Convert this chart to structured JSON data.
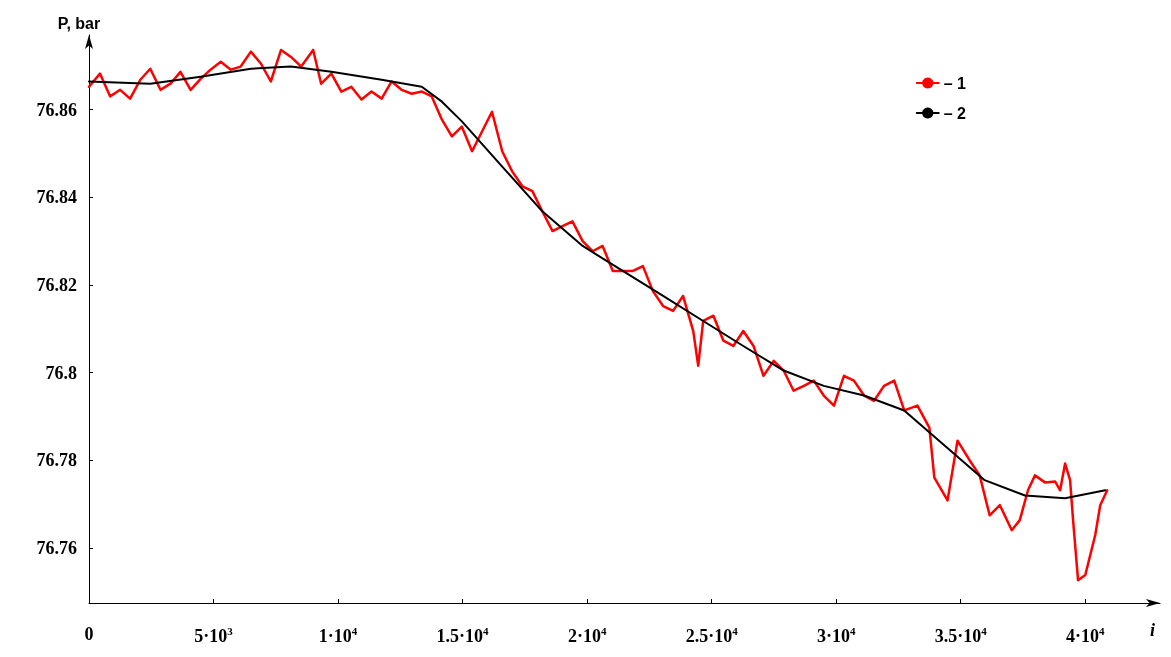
{
  "chart_data": {
    "type": "line",
    "ylabel": "P, bar",
    "xlabel": "i",
    "xlim": [
      0,
      43000
    ],
    "ylim": [
      76.7475,
      76.877
    ],
    "xticks": [
      0,
      {
        "value": 5000,
        "label": "5·10$^{3}$"
      },
      {
        "value": 10000,
        "label": "1·10$^{4}$"
      },
      {
        "value": 15000,
        "label": "1.5·10$^{4}$"
      },
      {
        "value": 20000,
        "label": "2·10$^{4}$"
      },
      {
        "value": 25000,
        "label": "2.5·10$^{4}$"
      },
      {
        "value": 30000,
        "label": "3·10$^{4}$"
      },
      {
        "value": 35000,
        "label": "3.5·10$^{4}$"
      },
      {
        "value": 40000,
        "label": "4·10$^{4}$"
      }
    ],
    "yticks": [
      76.76,
      76.78,
      76.8,
      76.82,
      76.84,
      76.86
    ],
    "grid": false,
    "legend": "top right",
    "marker": "none",
    "line_style": "solid",
    "series": [
      {
        "name": "– 1",
        "color": "#ff0000",
        "x": [
          0,
          440,
          850,
          1250,
          1650,
          2060,
          2460,
          2870,
          3270,
          3670,
          4080,
          4480,
          4880,
          5290,
          5690,
          6090,
          6500,
          6900,
          7300,
          7710,
          8110,
          8520,
          9000,
          9320,
          9730,
          10130,
          10530,
          10940,
          11340,
          11750,
          12150,
          12550,
          12960,
          13360,
          13760,
          14170,
          14570,
          14970,
          15380,
          15780,
          16180,
          16590,
          16990,
          17400,
          17800,
          18200,
          18610,
          19010,
          19410,
          19820,
          20220,
          20620,
          21030,
          21430,
          21840,
          22240,
          22640,
          23050,
          23450,
          23850,
          24260,
          24460,
          24660,
          25070,
          25470,
          25870,
          26270,
          26680,
          27080,
          27490,
          27890,
          28290,
          28700,
          29100,
          29500,
          29910,
          30310,
          30710,
          31120,
          31520,
          31920,
          32330,
          32730,
          33260,
          33740,
          33940,
          34470,
          34870,
          35360,
          35760,
          36160,
          36570,
          37050,
          37370,
          37700,
          37980,
          38380,
          38790,
          38990,
          39190,
          39390,
          39510,
          39710,
          40000,
          40400,
          40600,
          40880
        ],
        "values": [
          76.8652,
          76.8682,
          76.863,
          76.8645,
          76.8625,
          76.8668,
          76.8693,
          76.8645,
          76.8659,
          76.8686,
          76.8645,
          76.867,
          76.8691,
          76.8709,
          76.8691,
          76.8698,
          76.8732,
          76.8705,
          76.8664,
          76.8736,
          76.872,
          76.8698,
          76.8736,
          76.8659,
          76.8682,
          76.8641,
          76.8652,
          76.8623,
          76.8641,
          76.8625,
          76.8664,
          76.8645,
          76.8636,
          76.8641,
          76.863,
          76.8577,
          76.8539,
          76.8561,
          76.8505,
          76.855,
          76.8595,
          76.8505,
          76.8459,
          76.8425,
          76.8414,
          76.8368,
          76.8323,
          76.8334,
          76.8345,
          76.83,
          76.8277,
          76.8289,
          76.8232,
          76.8232,
          76.8232,
          76.8243,
          76.8186,
          76.8152,
          76.8141,
          76.8175,
          76.8095,
          76.8016,
          76.8118,
          76.813,
          76.8073,
          76.8061,
          76.8095,
          76.8061,
          76.7993,
          76.8027,
          76.8005,
          76.7959,
          76.797,
          76.7982,
          76.7948,
          76.7925,
          76.7993,
          76.7982,
          76.7948,
          76.7936,
          76.797,
          76.7982,
          76.7914,
          76.7925,
          76.7875,
          76.7761,
          76.7709,
          76.7845,
          76.78,
          76.7766,
          76.7675,
          76.7698,
          76.7641,
          76.7664,
          76.7732,
          76.7766,
          76.775,
          76.7752,
          76.7732,
          76.7793,
          76.7755,
          76.7664,
          76.7527,
          76.7539,
          76.763,
          76.7698,
          76.7732
        ]
      },
      {
        "name": "– 2",
        "color": "#000000",
        "x": [
          0,
          2460,
          4480,
          6500,
          8110,
          9730,
          11750,
          13360,
          14170,
          14970,
          16590,
          18200,
          19820,
          21430,
          23050,
          24660,
          26270,
          27890,
          29500,
          31120,
          32730,
          34350,
          35960,
          37580,
          39190,
          40800
        ],
        "values": [
          76.8664,
          76.8659,
          76.8675,
          76.8693,
          76.8698,
          76.8686,
          76.8668,
          76.8652,
          76.8618,
          76.8573,
          76.847,
          76.8368,
          76.8289,
          76.8232,
          76.8175,
          76.8118,
          76.8061,
          76.8005,
          76.797,
          76.7948,
          76.7914,
          76.7834,
          76.7755,
          76.772,
          76.7714,
          76.7732
        ]
      }
    ]
  }
}
